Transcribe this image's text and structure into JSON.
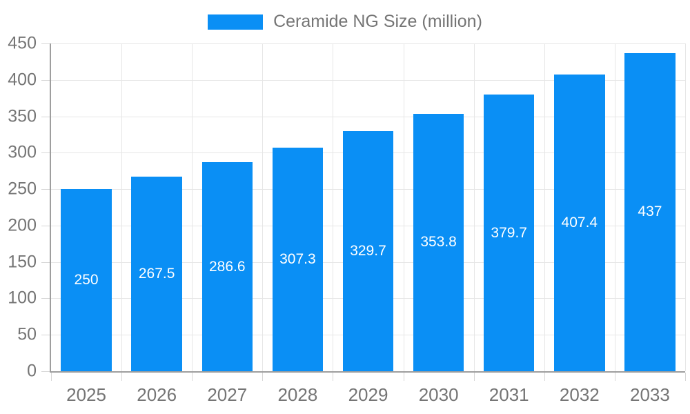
{
  "chart_data": {
    "type": "bar",
    "title": "Ceramide NG Size (million)",
    "legend": {
      "position": "top",
      "label": "Ceramide NG Size (million)"
    },
    "categories": [
      "2025",
      "2026",
      "2027",
      "2028",
      "2029",
      "2030",
      "2031",
      "2032",
      "2033"
    ],
    "series": [
      {
        "name": "Ceramide NG Size (million)",
        "values": [
          250,
          267.5,
          286.6,
          307.3,
          329.7,
          353.8,
          379.7,
          407.4,
          437
        ]
      }
    ],
    "value_labels": [
      "250",
      "267.5",
      "286.6",
      "307.3",
      "329.7",
      "353.8",
      "379.7",
      "407.4",
      "437"
    ],
    "xlabel": "",
    "ylabel": "",
    "ylim": [
      0,
      450
    ],
    "ytick_step": 50,
    "yticks": [
      0,
      50,
      100,
      150,
      200,
      250,
      300,
      350,
      400,
      450
    ],
    "grid": true,
    "colors": {
      "bar": "#0a8ff5",
      "grid": "#e6e6e6",
      "tick": "#d6d6d6",
      "axis": "#9e9e9e",
      "axis_text": "#757575",
      "value_text": "#ffffff",
      "background": "#ffffff"
    },
    "bar_width_fraction": 0.72
  }
}
